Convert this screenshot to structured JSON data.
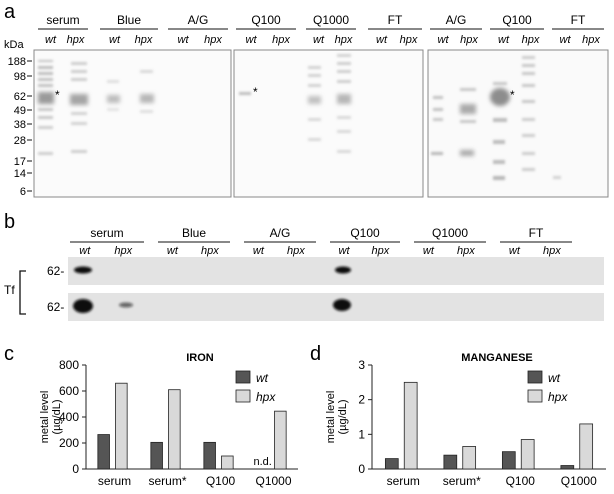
{
  "panel_a": {
    "letter": "a",
    "kda_label": "kDa",
    "ladder": [
      "188",
      "98",
      "62",
      "49",
      "38",
      "28",
      "17",
      "14",
      "6"
    ],
    "groups": [
      {
        "label": "serum",
        "lanes": [
          "wt",
          "hpx"
        ]
      },
      {
        "label": "Blue",
        "lanes": [
          "wt",
          "hpx"
        ]
      },
      {
        "label": "A/G",
        "lanes": [
          "wt",
          "hpx"
        ]
      },
      {
        "label": "Q100",
        "lanes": [
          "wt",
          "hpx"
        ]
      },
      {
        "label": "Q1000",
        "lanes": [
          "wt",
          "hpx"
        ]
      },
      {
        "label": "FT",
        "lanes": [
          "wt",
          "hpx"
        ]
      },
      {
        "label": "A/G",
        "lanes": [
          "wt",
          "hpx"
        ]
      },
      {
        "label": "Q100",
        "lanes": [
          "wt",
          "hpx"
        ]
      },
      {
        "label": "FT",
        "lanes": [
          "wt",
          "hpx"
        ]
      }
    ],
    "asterisk": "*"
  },
  "panel_b": {
    "letter": "b",
    "groups": [
      {
        "label": "serum",
        "lanes": [
          "wt",
          "hpx"
        ]
      },
      {
        "label": "Blue",
        "lanes": [
          "wt",
          "hpx"
        ]
      },
      {
        "label": "A/G",
        "lanes": [
          "wt",
          "hpx"
        ]
      },
      {
        "label": "Q100",
        "lanes": [
          "wt",
          "hpx"
        ]
      },
      {
        "label": "Q1000",
        "lanes": [
          "wt",
          "hpx"
        ]
      },
      {
        "label": "FT",
        "lanes": [
          "wt",
          "hpx"
        ]
      }
    ],
    "tf_label": "Tf",
    "marker_top": "62-",
    "marker_bottom": "62-"
  },
  "panel_c": {
    "letter": "c"
  },
  "panel_d": {
    "letter": "d"
  },
  "chart_data": [
    {
      "type": "bar",
      "title": "IRON",
      "ylabel": "metal level (µg/dL)",
      "ylim": [
        0,
        800
      ],
      "yticks": [
        "0",
        "200",
        "400",
        "600",
        "800"
      ],
      "categories": [
        "serum",
        "serum*",
        "Q100",
        "Q1000"
      ],
      "series": [
        {
          "name": "wt",
          "color": "#555555",
          "values": [
            265,
            205,
            205,
            null
          ]
        },
        {
          "name": "hpx",
          "color": "#d9d9d9",
          "values": [
            660,
            610,
            100,
            445
          ]
        }
      ],
      "annotations": [
        {
          "category": "Q1000",
          "text": "n.d."
        }
      ],
      "legend": "top-right"
    },
    {
      "type": "bar",
      "title": "MANGANESE",
      "ylabel": "metal level (µg/dL)",
      "ylim": [
        0,
        3
      ],
      "yticks": [
        "0",
        "1",
        "2",
        "3"
      ],
      "categories": [
        "serum",
        "serum*",
        "Q100",
        "Q1000"
      ],
      "series": [
        {
          "name": "wt",
          "color": "#555555",
          "values": [
            0.3,
            0.4,
            0.5,
            0.1
          ]
        },
        {
          "name": "hpx",
          "color": "#d9d9d9",
          "values": [
            2.5,
            0.65,
            0.85,
            1.3
          ]
        }
      ],
      "legend": "top-right"
    }
  ]
}
